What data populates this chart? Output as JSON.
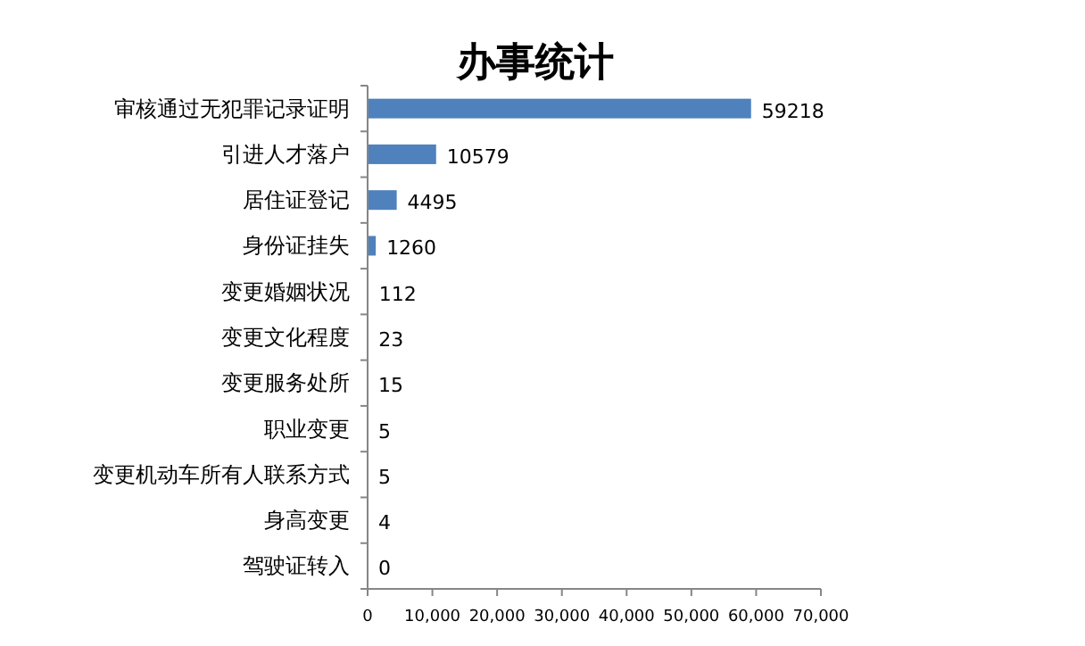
{
  "chart_data": {
    "type": "bar",
    "orientation": "horizontal",
    "title": "办事统计",
    "categories": [
      "审核通过无犯罪记录证明",
      "引进人才落户",
      "居住证登记",
      "身份证挂失",
      "变更婚姻状况",
      "变更文化程度",
      "变更服务处所",
      "职业变更",
      "变更机动车所有人联系方式",
      "身高变更",
      "驾驶证转入"
    ],
    "values": [
      59218,
      10579,
      4495,
      1260,
      112,
      23,
      15,
      5,
      5,
      4,
      0
    ],
    "color": "#4f81bd",
    "xlim": [
      0,
      70000
    ],
    "xticks": [
      0,
      {
        "value": 10000,
        "label": "10,000"
      },
      {
        "value": 20000,
        "label": "20,000"
      },
      {
        "value": 30000,
        "label": "30,000"
      },
      {
        "value": 40000,
        "label": "40,000"
      },
      {
        "value": 50000,
        "label": "50,000"
      },
      {
        "value": 60000,
        "label": "60,000"
      },
      {
        "value": 70000,
        "label": "70,000"
      }
    ],
    "data_labels": true,
    "grid": false
  }
}
